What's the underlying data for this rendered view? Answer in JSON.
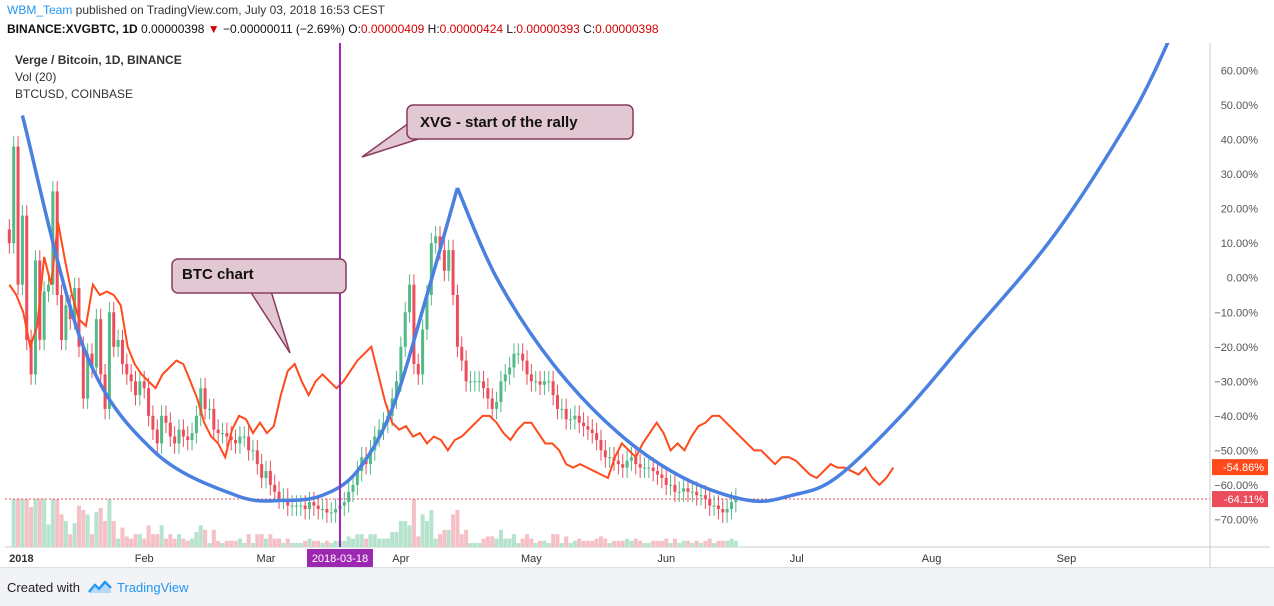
{
  "header": {
    "user": "WBM_Team",
    "published": " published on TradingView.com, July 03, 2018 16:53 CEST",
    "symbol": "BINANCE:XVGBTC, 1D",
    "close": "0.00000398",
    "arrow": "▼",
    "change": "−0.00000011 (−2.69%)",
    "o_label": "O:",
    "o_value": "0.00000409",
    "h_label": "H:",
    "h_value": "0.00000424",
    "l_label": "L:",
    "l_value": "0.00000393",
    "c_label": "C:",
    "c_value": "0.00000398"
  },
  "legend": {
    "title": "Verge / Bitcoin, 1D, BINANCE",
    "vol": "Vol (20)",
    "btc": "BTCUSD, COINBASE"
  },
  "annotations": {
    "btc_chart": "BTC chart",
    "xvg_rally": "XVG - start of the rally"
  },
  "footer": {
    "created_with": "Created with",
    "brand": "TradingView"
  },
  "colors": {
    "up": "#53b987",
    "down": "#eb4d5c",
    "btc_line": "#ff4a1c",
    "curve": "#4a80e0",
    "vline": "#9c27b0",
    "callout_bg": "#e2c8d2",
    "callout_border": "#8a3a5e"
  },
  "chart_data": {
    "type": "candlestick",
    "title": "Verge / Bitcoin, 1D, BINANCE",
    "y_axis_unit": "%",
    "yticks": [
      "60.00%",
      "50.00%",
      "40.00%",
      "30.00%",
      "20.00%",
      "10.00%",
      "0.00%",
      "−10.00%",
      "−20.00%",
      "−30.00%",
      "−40.00%",
      "−50.00%",
      "−60.00%",
      "−70.00%"
    ],
    "ylim": [
      -78,
      68
    ],
    "xticks": [
      "2018",
      "Feb",
      "Mar",
      "Apr",
      "May",
      "Jun",
      "Jul",
      "Aug",
      "Sep"
    ],
    "xtick_days": [
      0,
      31,
      59,
      90,
      120,
      151,
      181,
      212,
      243
    ],
    "xlim": [
      -1,
      276
    ],
    "highlight_date": "2018-03-18",
    "highlight_day": 76,
    "price_labels": [
      {
        "text": "-54.86%",
        "value": -54.86,
        "color": "#ff4a1c"
      },
      {
        "text": "-64.11%",
        "value": -64.11,
        "color": "#eb4d5c"
      }
    ],
    "dotted_level": -64.11,
    "xvg_pct": [
      10,
      38,
      -2,
      18,
      -18,
      -28,
      5,
      -18,
      -4,
      -2,
      25,
      -5,
      -18,
      -8,
      -12,
      -3,
      -20,
      -35,
      -22,
      -26,
      -12,
      -28,
      -38,
      -10,
      -20,
      -18,
      -25,
      -28,
      -30,
      -34,
      -30,
      -32,
      -40,
      -44,
      -48,
      -40,
      -42,
      -46,
      -48,
      -44,
      -46,
      -47,
      -45,
      -40,
      -32,
      -38,
      -38,
      -44,
      -45,
      -45,
      -46,
      -47,
      -48,
      -46,
      -46,
      -50,
      -50,
      -54,
      -58,
      -56,
      -60,
      -62,
      -64,
      -64,
      -66,
      -66,
      -66,
      -66,
      -67,
      -65,
      -66,
      -67,
      -67,
      -68,
      -68,
      -67,
      -66,
      -65,
      -62,
      -60,
      -56,
      -52,
      -54,
      -50,
      -46,
      -44,
      -42,
      -40,
      -35,
      -30,
      -20,
      -10,
      -2,
      -25,
      -28,
      -15,
      -5,
      10,
      12,
      8,
      2,
      8,
      -5,
      -20,
      -24,
      -30,
      -30,
      -30,
      -30,
      -32,
      -35,
      -38,
      -36,
      -30,
      -28,
      -26,
      -22,
      -22,
      -24,
      -28,
      -30,
      -30,
      -31,
      -30,
      -30,
      -34,
      -38,
      -38,
      -41,
      -41,
      -40,
      -42,
      -43,
      -44,
      -45,
      -47,
      -50,
      -52,
      -52,
      -53,
      -54,
      -55,
      -53,
      -52,
      -54,
      -55,
      -55,
      -55,
      -56,
      -57,
      -58,
      -60,
      -60,
      -62,
      -62,
      -61,
      -62,
      -62,
      -63,
      -63,
      -64,
      -66,
      -66,
      -67,
      -68,
      -67,
      -65,
      -64
    ],
    "xvg_start_day": 0,
    "btc_pct": [
      -2,
      -5,
      -10,
      -20,
      -14,
      6,
      -2,
      16,
      5,
      -5,
      -12,
      -14,
      -2,
      -5,
      -4,
      -5,
      -8,
      -20,
      -25,
      -28,
      -30,
      -32,
      -28,
      -26,
      -24,
      -25,
      -30,
      -35,
      -42,
      -46,
      -48,
      -52,
      -44,
      -40,
      -41,
      -45,
      -42,
      -45,
      -43,
      -34,
      -27,
      -25,
      -30,
      -34,
      -30,
      -28,
      -30,
      -32,
      -30,
      -27,
      -24,
      -22,
      -20,
      -28,
      -36,
      -42,
      -44,
      -43,
      -46,
      -45,
      -48,
      -46,
      -47,
      -50,
      -47,
      -46,
      -44,
      -42,
      -40,
      -40,
      -42,
      -45,
      -47,
      -44,
      -42,
      -42,
      -45,
      -48,
      -48,
      -50,
      -54,
      -55,
      -54,
      -55,
      -56,
      -57,
      -58,
      -52,
      -48,
      -50,
      -52,
      -48,
      -45,
      -42,
      -45,
      -50,
      -48,
      -50,
      -46,
      -43,
      -42,
      -40,
      -40,
      -42,
      -44,
      -46,
      -48,
      -50,
      -50,
      -52,
      -54,
      -52,
      -52,
      -53,
      -55,
      -57,
      -58,
      -56,
      -54,
      -55,
      -55,
      -56,
      -57,
      -55,
      -58,
      -60,
      -58,
      -55
    ],
    "btc_step_days": 1.6,
    "curve_left": [
      [
        3,
        47
      ],
      [
        17,
        -20
      ],
      [
        33,
        -50
      ],
      [
        52,
        -63
      ],
      [
        63,
        -64.5
      ],
      [
        72,
        -63
      ],
      [
        80,
        -56
      ],
      [
        88,
        -38
      ],
      [
        96,
        -5
      ],
      [
        103,
        26
      ]
    ],
    "curve_right": [
      [
        103,
        26
      ],
      [
        112,
        0
      ],
      [
        125,
        -25
      ],
      [
        140,
        -45
      ],
      [
        155,
        -58
      ],
      [
        170,
        -64.5
      ],
      [
        180,
        -63
      ],
      [
        190,
        -58
      ],
      [
        205,
        -40
      ],
      [
        220,
        -18
      ],
      [
        240,
        12
      ],
      [
        258,
        47
      ],
      [
        267,
        70
      ]
    ]
  }
}
